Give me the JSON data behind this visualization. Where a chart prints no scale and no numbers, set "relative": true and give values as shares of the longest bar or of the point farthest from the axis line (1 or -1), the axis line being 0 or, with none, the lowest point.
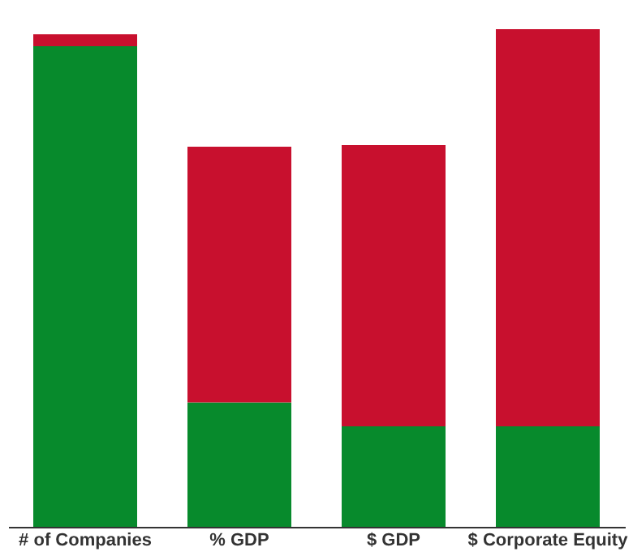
{
  "chart_data": {
    "type": "bar",
    "relative": true,
    "stacked": true,
    "categories": [
      "# of Companies",
      "% GDP",
      "$ GDP",
      "$ Corporate Equity"
    ],
    "series": [
      {
        "color": "#078a2c",
        "values": [
          0.966,
          0.25,
          0.202,
          0.202
        ]
      },
      {
        "color": "#c8102e",
        "values": [
          0.024,
          0.514,
          0.565,
          0.798
        ]
      }
    ],
    "grid": false,
    "legend": false
  }
}
